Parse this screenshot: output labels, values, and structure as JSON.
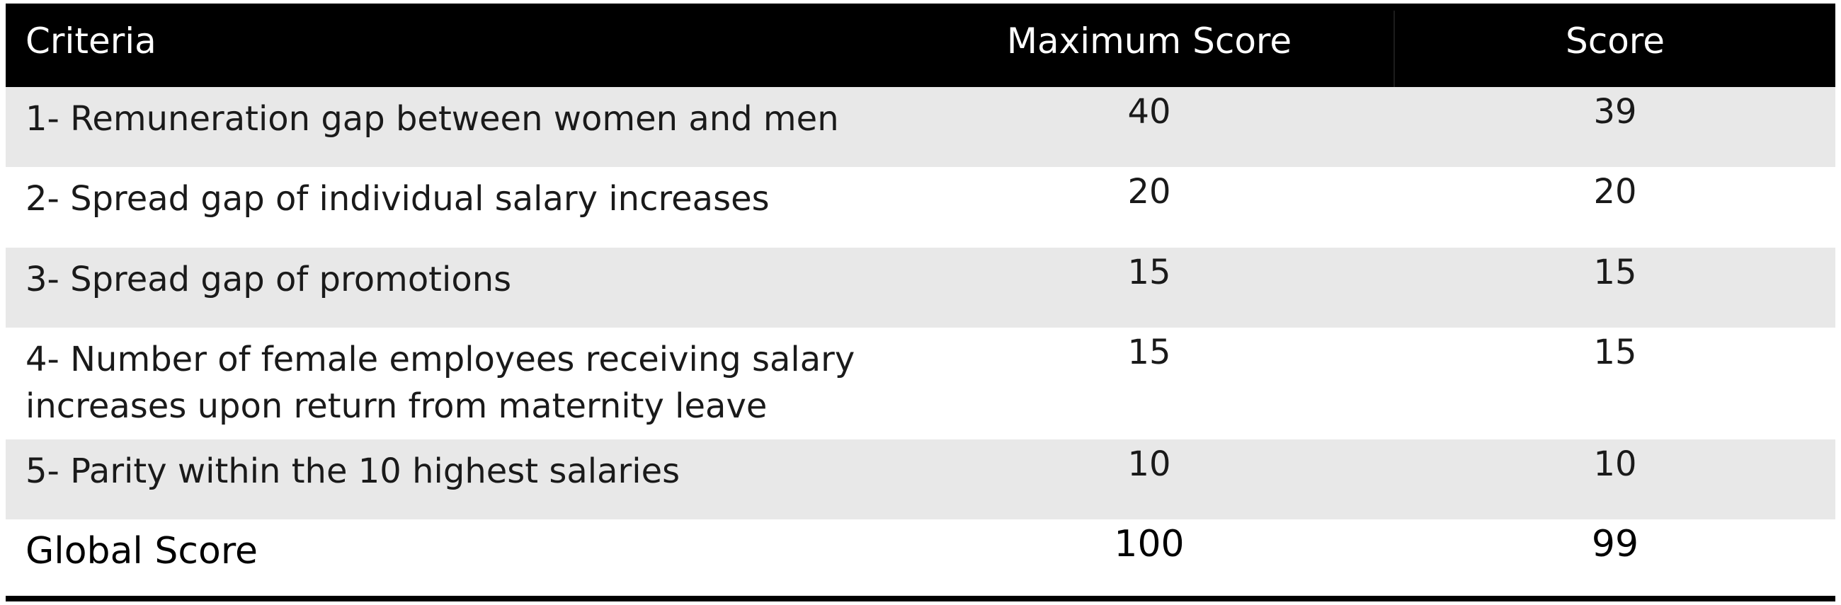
{
  "table": {
    "headers": {
      "criteria": "Criteria",
      "max_score": "Maximum Score",
      "score": "Score"
    },
    "rows": [
      {
        "criteria": "1- Remuneration gap between women and men",
        "max_score": "40",
        "score": "39"
      },
      {
        "criteria": "2- Spread gap of individual salary increases",
        "max_score": "20",
        "score": "20"
      },
      {
        "criteria": "3- Spread gap of promotions",
        "max_score": "15",
        "score": "15"
      },
      {
        "criteria_line1": "4- Number of female employees receiving salary",
        "criteria_line2": "increases upon return from maternity leave",
        "max_score": "15",
        "score": "15"
      },
      {
        "criteria": "5- Parity within the 10 highest salaries",
        "max_score": "10",
        "score": "10"
      }
    ],
    "total": {
      "criteria": "Global Score",
      "max_score": "100",
      "score": "99"
    }
  }
}
